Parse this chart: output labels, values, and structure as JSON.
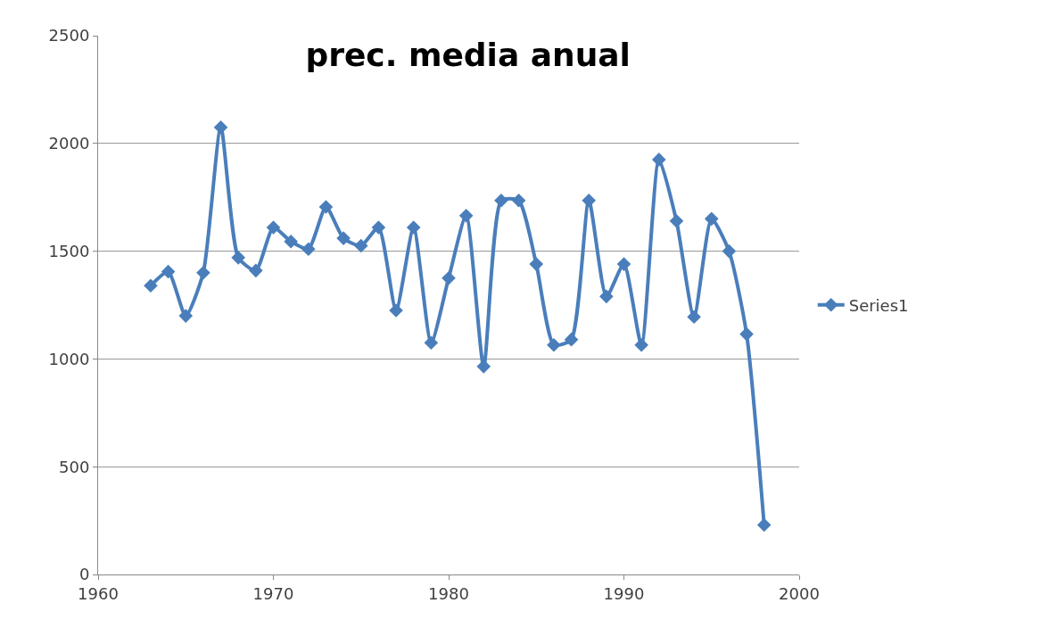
{
  "chart_data": {
    "type": "line",
    "title": "prec. media anual",
    "x": [
      1963,
      1964,
      1965,
      1966,
      1967,
      1968,
      1969,
      1970,
      1971,
      1972,
      1973,
      1974,
      1975,
      1976,
      1977,
      1978,
      1979,
      1980,
      1981,
      1982,
      1983,
      1984,
      1985,
      1986,
      1987,
      1988,
      1989,
      1990,
      1991,
      1992,
      1993,
      1994,
      1995,
      1996,
      1997,
      1998
    ],
    "series": [
      {
        "name": "Series1",
        "color": "#4a7ebb",
        "values": [
          1340,
          1405,
          1200,
          1400,
          2075,
          1470,
          1410,
          1610,
          1545,
          1510,
          1705,
          1560,
          1525,
          1610,
          1225,
          1610,
          1075,
          1375,
          1665,
          965,
          1735,
          1735,
          1440,
          1065,
          1090,
          1735,
          1290,
          1440,
          1065,
          1925,
          1640,
          1195,
          1650,
          1500,
          1115,
          230
        ]
      }
    ],
    "xlim": [
      1960,
      2000
    ],
    "xticks": [
      1960,
      1970,
      1980,
      1990,
      2000
    ],
    "ylim": [
      0,
      2500
    ],
    "yticks": [
      0,
      500,
      1000,
      1500,
      2000,
      2500
    ],
    "grid": "y",
    "legend": "right",
    "marker": "diamond",
    "line_style": "solid"
  }
}
